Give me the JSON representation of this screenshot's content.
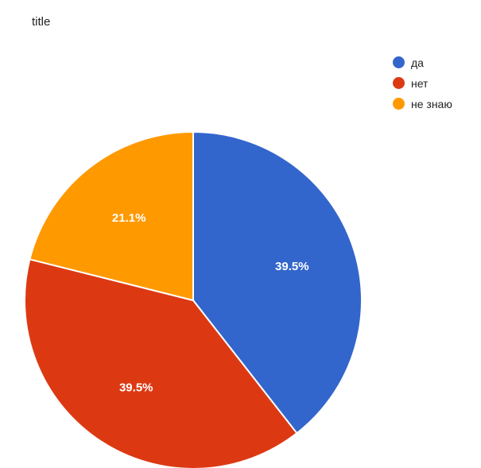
{
  "chart_data": {
    "type": "pie",
    "title": "title",
    "legend_position": "top-right",
    "slices": [
      {
        "label": "да",
        "value": 39.5,
        "value_label": "39.5%",
        "color": "#3366cc"
      },
      {
        "label": "нет",
        "value": 39.5,
        "value_label": "39.5%",
        "color": "#dc3912"
      },
      {
        "label": "не знаю",
        "value": 21.1,
        "value_label": "21.1%",
        "color": "#ff9900"
      }
    ]
  }
}
